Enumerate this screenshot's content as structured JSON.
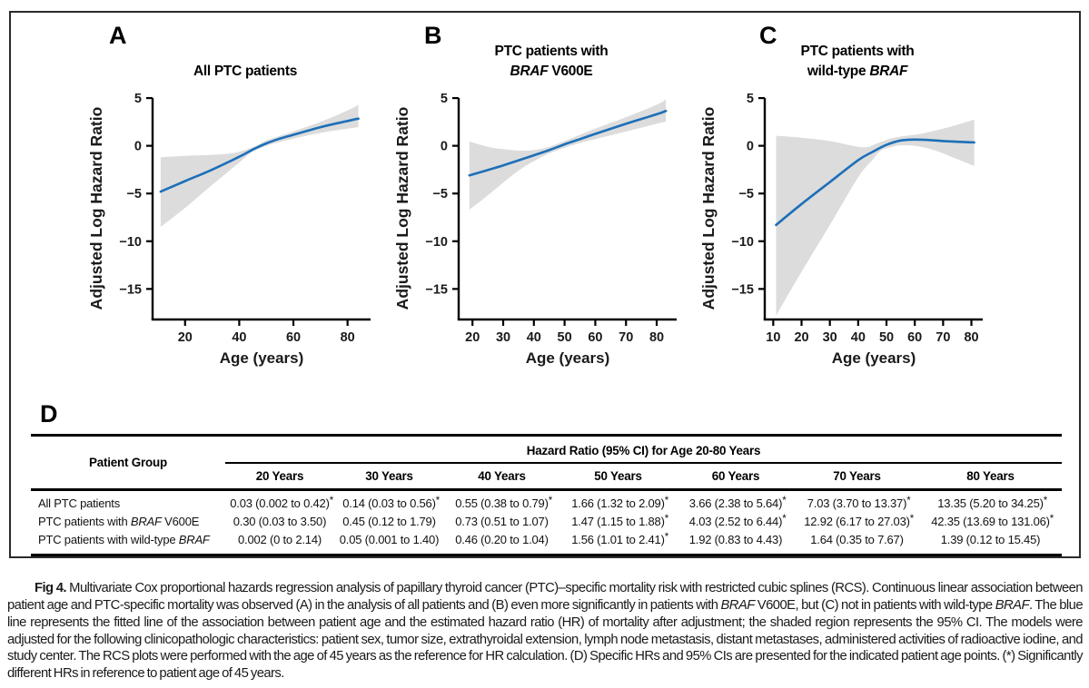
{
  "colors": {
    "line_blue": "#1d6fb8",
    "ci_band_gray": "#dcdcdc",
    "axis_black": "#000000",
    "text_black": "#1a1a1a"
  },
  "chart_data": [
    {
      "type": "line",
      "panel": "A",
      "title": "All PTC patients",
      "title_lines": [
        [
          {
            "t": "All PTC patients"
          }
        ]
      ],
      "xlabel": "Age (years)",
      "ylabel": "Adjusted Log Hazard Ratio",
      "xlim": [
        8,
        88.5
      ],
      "ylim": [
        -18.2,
        5.1
      ],
      "x_ticks": [
        20,
        40,
        60,
        80
      ],
      "y_ticks": [
        5,
        0,
        -5,
        -10,
        -15
      ],
      "grid": false,
      "legend": "none",
      "series": [
        {
          "name": "fitted log hazard ratio",
          "points": [
            [
              11,
              -4.8
            ],
            [
              20,
              -3.7
            ],
            [
              30,
              -2.5
            ],
            [
              40,
              -1.15
            ],
            [
              45,
              -0.4
            ],
            [
              50,
              0.25
            ],
            [
              55,
              0.75
            ],
            [
              60,
              1.15
            ],
            [
              70,
              1.95
            ],
            [
              80,
              2.6
            ],
            [
              84,
              2.85
            ]
          ]
        }
      ],
      "ci_band": {
        "name": "95% CI",
        "upper": [
          [
            11,
            -1.2
          ],
          [
            20,
            -1.05
          ],
          [
            30,
            -0.95
          ],
          [
            38,
            -0.75
          ],
          [
            45,
            -0.15
          ],
          [
            50,
            0.55
          ],
          [
            55,
            1.05
          ],
          [
            60,
            1.5
          ],
          [
            70,
            2.5
          ],
          [
            80,
            3.7
          ],
          [
            84,
            4.3
          ]
        ],
        "lower": [
          [
            11,
            -8.5
          ],
          [
            20,
            -6.5
          ],
          [
            30,
            -4.1
          ],
          [
            40,
            -1.75
          ],
          [
            45,
            -0.6
          ],
          [
            50,
            0.0
          ],
          [
            55,
            0.4
          ],
          [
            60,
            0.75
          ],
          [
            70,
            1.35
          ],
          [
            80,
            1.8
          ],
          [
            84,
            1.95
          ]
        ]
      }
    },
    {
      "type": "line",
      "panel": "B",
      "title": "PTC patients with BRAF V600E",
      "title_lines": [
        [
          {
            "t": "PTC patients with"
          }
        ],
        [
          {
            "t": "BRAF",
            "i": true
          },
          {
            "t": " V600E"
          }
        ]
      ],
      "xlabel": "Age (years)",
      "ylabel": "Adjusted Log Hazard Ratio",
      "xlim": [
        15.5,
        86.5
      ],
      "ylim": [
        -18.2,
        5.1
      ],
      "x_ticks": [
        20,
        30,
        40,
        50,
        60,
        70,
        80
      ],
      "y_ticks": [
        5,
        0,
        -5,
        -10,
        -15
      ],
      "grid": false,
      "legend": "none",
      "series": [
        {
          "name": "fitted log hazard ratio",
          "points": [
            [
              19,
              -3.1
            ],
            [
              30,
              -2.05
            ],
            [
              40,
              -1.0
            ],
            [
              45,
              -0.45
            ],
            [
              50,
              0.15
            ],
            [
              55,
              0.7
            ],
            [
              60,
              1.25
            ],
            [
              70,
              2.3
            ],
            [
              80,
              3.3
            ],
            [
              83,
              3.65
            ]
          ]
        }
      ],
      "ci_band": {
        "name": "95% CI",
        "upper": [
          [
            19,
            0.45
          ],
          [
            25,
            -0.1
          ],
          [
            30,
            -0.35
          ],
          [
            35,
            -0.5
          ],
          [
            40,
            -0.45
          ],
          [
            45,
            -0.1
          ],
          [
            50,
            0.5
          ],
          [
            55,
            1.15
          ],
          [
            60,
            1.8
          ],
          [
            70,
            3.0
          ],
          [
            80,
            4.3
          ],
          [
            83,
            4.85
          ]
        ],
        "lower": [
          [
            19,
            -6.7
          ],
          [
            25,
            -5.2
          ],
          [
            30,
            -3.85
          ],
          [
            35,
            -2.6
          ],
          [
            40,
            -1.6
          ],
          [
            45,
            -0.8
          ],
          [
            50,
            -0.2
          ],
          [
            55,
            0.3
          ],
          [
            60,
            0.7
          ],
          [
            70,
            1.5
          ],
          [
            80,
            2.3
          ],
          [
            83,
            2.55
          ]
        ]
      }
    },
    {
      "type": "line",
      "panel": "C",
      "title": "PTC patients with wild-type BRAF",
      "title_lines": [
        [
          {
            "t": "PTC patients with"
          }
        ],
        [
          {
            "t": "wild-type "
          },
          {
            "t": "BRAF",
            "i": true
          }
        ]
      ],
      "xlabel": "Age (years)",
      "ylabel": "Adjusted Log Hazard Ratio",
      "xlim": [
        7,
        84
      ],
      "ylim": [
        -18.2,
        5.1
      ],
      "x_ticks": [
        10,
        20,
        30,
        40,
        50,
        60,
        70,
        80
      ],
      "y_ticks": [
        5,
        0,
        -5,
        -10,
        -15
      ],
      "grid": false,
      "legend": "none",
      "series": [
        {
          "name": "fitted log hazard ratio",
          "points": [
            [
              11,
              -8.3
            ],
            [
              20,
              -6.1
            ],
            [
              30,
              -3.8
            ],
            [
              40,
              -1.5
            ],
            [
              45,
              -0.65
            ],
            [
              50,
              0.1
            ],
            [
              55,
              0.55
            ],
            [
              60,
              0.65
            ],
            [
              65,
              0.6
            ],
            [
              70,
              0.5
            ],
            [
              75,
              0.42
            ],
            [
              81,
              0.35
            ]
          ]
        }
      ],
      "ci_band": {
        "name": "95% CI",
        "upper": [
          [
            11,
            1.05
          ],
          [
            20,
            0.85
          ],
          [
            30,
            0.5
          ],
          [
            38,
            0.0
          ],
          [
            43,
            -0.15
          ],
          [
            47,
            0.3
          ],
          [
            52,
            0.8
          ],
          [
            57,
            1.05
          ],
          [
            62,
            1.25
          ],
          [
            70,
            1.8
          ],
          [
            75,
            2.2
          ],
          [
            81,
            2.75
          ]
        ],
        "lower": [
          [
            11,
            -17.8
          ],
          [
            20,
            -13.2
          ],
          [
            30,
            -8.3
          ],
          [
            40,
            -3.3
          ],
          [
            45,
            -1.5
          ],
          [
            48,
            -0.5
          ],
          [
            52,
            -0.1
          ],
          [
            55,
            0.05
          ],
          [
            60,
            0.0
          ],
          [
            65,
            -0.3
          ],
          [
            70,
            -0.8
          ],
          [
            75,
            -1.4
          ],
          [
            81,
            -2.1
          ]
        ]
      }
    }
  ],
  "table": {
    "panel_letter": "D",
    "row_header": "Patient Group",
    "span_header": "Hazard Ratio (95% CI) for Age 20-80 Years",
    "col_headers": [
      "20 Years",
      "30 Years",
      "40 Years",
      "50 Years",
      "60 Years",
      "70 Years",
      "80 Years"
    ],
    "rows": [
      {
        "label_parts": [
          {
            "t": "All PTC patients"
          }
        ],
        "cells": [
          {
            "v": "0.03 (0.002 to 0.42)",
            "star": true
          },
          {
            "v": "0.14 (0.03 to 0.56)",
            "star": true
          },
          {
            "v": "0.55 (0.38 to 0.79)",
            "star": true
          },
          {
            "v": "1.66 (1.32 to 2.09)",
            "star": true
          },
          {
            "v": "3.66 (2.38 to 5.64)",
            "star": true
          },
          {
            "v": "7.03 (3.70 to 13.37)",
            "star": true
          },
          {
            "v": "13.35 (5.20 to 34.25)",
            "star": true
          }
        ]
      },
      {
        "label_parts": [
          {
            "t": "PTC patients with "
          },
          {
            "t": "BRAF",
            "i": true
          },
          {
            "t": " V600E"
          }
        ],
        "cells": [
          {
            "v": "0.30 (0.03 to 3.50)",
            "star": false
          },
          {
            "v": "0.45 (0.12 to 1.79)",
            "star": false
          },
          {
            "v": "0.73 (0.51 to 1.07)",
            "star": false
          },
          {
            "v": "1.47 (1.15 to 1.88)",
            "star": true
          },
          {
            "v": "4.03 (2.52 to 6.44)",
            "star": true
          },
          {
            "v": "12.92 (6.17 to 27.03)",
            "star": true
          },
          {
            "v": "42.35 (13.69 to 131.06)",
            "star": true
          }
        ]
      },
      {
        "label_parts": [
          {
            "t": "PTC patients with wild-type "
          },
          {
            "t": "BRAF",
            "i": true
          }
        ],
        "cells": [
          {
            "v": "0.002 (0 to 2.14)",
            "star": false
          },
          {
            "v": "0.05 (0.001 to 1.40)",
            "star": false
          },
          {
            "v": "0.46 (0.20 to 1.04)",
            "star": false
          },
          {
            "v": "1.56 (1.01 to 2.41)",
            "star": true
          },
          {
            "v": "1.92 (0.83 to 4.43)",
            "star": false
          },
          {
            "v": "1.64 (0.35 to 7.67)",
            "star": false
          },
          {
            "v": "1.39 (0.12 to 15.45)",
            "star": false
          }
        ]
      }
    ]
  },
  "caption": {
    "segments": [
      {
        "t": "Fig 4.",
        "b": true
      },
      {
        "t": " Multivariate Cox proportional hazards regression analysis of papillary thyroid cancer (PTC)–specific mortality risk with restricted cubic splines (RCS). Continuous linear association between patient age and PTC-specific mortality was observed (A) in the analysis of all patients and (B) even more significantly in patients with "
      },
      {
        "t": "BRAF",
        "i": true
      },
      {
        "t": " V600E, but (C) not in patients with wild-type "
      },
      {
        "t": "BRAF",
        "i": true
      },
      {
        "t": ". The blue line represents the fitted line of the association between patient age and the estimated hazard ratio (HR) of mortality after adjustment; the shaded region represents the 95% CI. The models were adjusted for the following clinicopathologic characteristics: patient sex, tumor size, extrathyroidal extension, lymph node metastasis, distant metastases, administered activities of radioactive iodine, and study center. The RCS plots were performed with the age of 45 years as the reference for HR calculation. (D) Specific HRs and 95% CIs are presented for the indicated patient age points. (*) Significantly different HRs in reference to patient age of 45 years."
      }
    ]
  }
}
